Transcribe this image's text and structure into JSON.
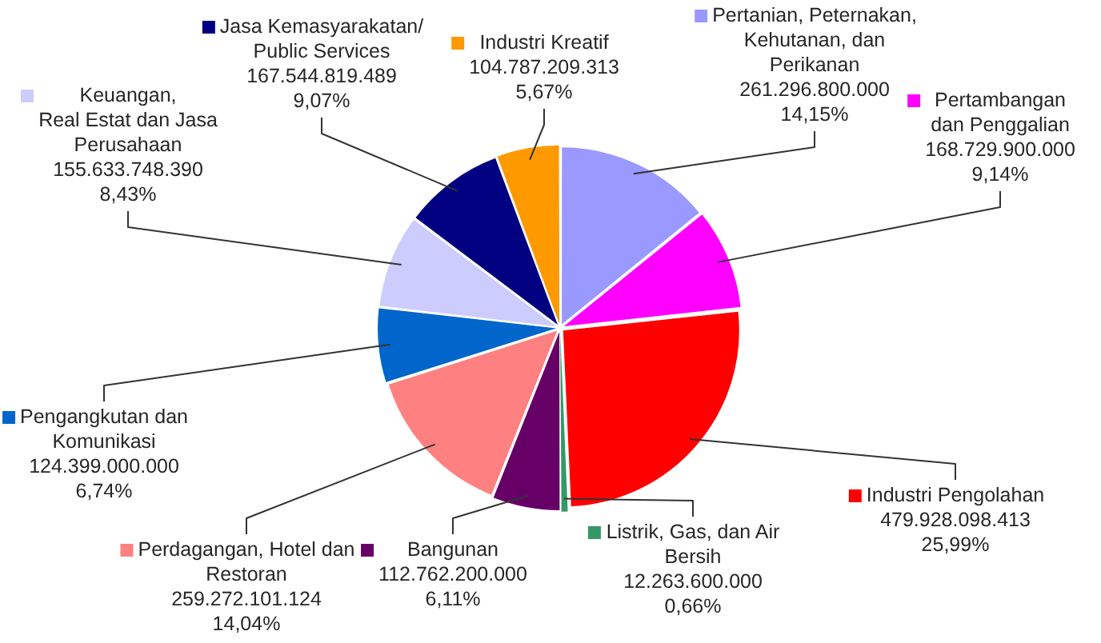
{
  "chart_data": {
    "type": "pie",
    "categories": [
      "Pertanian, Peternakan,\nKehutanan, dan\nPerikanan",
      "Pertambangan\ndan Penggalian",
      "Industri Pengolahan",
      "Listrik, Gas, dan Air\nBersih",
      "Bangunan",
      "Perdagangan, Hotel dan\nRestoran",
      "Pengangkutan dan\nKomunikasi",
      "Keuangan,\nReal Estat dan Jasa\nPerusahaan",
      "Jasa Kemasyarakatan/\nPublic Services",
      "Industri Kreatif"
    ],
    "values": [
      261296800000,
      168729900000,
      479928098413,
      12263600000,
      112762200000,
      259272101124,
      124399000000,
      155633748390,
      167544819489,
      104787209313
    ],
    "colors": [
      "#9999ff",
      "#ff00ff",
      "#ff0000",
      "#339966",
      "#660066",
      "#ff8080",
      "#0066cc",
      "#ccccff",
      "#000080",
      "#ff9900"
    ],
    "value_labels": [
      "261.296.800.000\n14,15%",
      "168.729.900.000\n9,14%",
      "479.928.098.413\n25,99%",
      "12.263.600.000\n0,66%",
      "112.762.200.000\n6,11%",
      "259.272.101.124\n14,04%",
      "124.399.000.000\n6,74%",
      "155.633.748.390\n8,43%",
      "167.544.819.489\n9,07%",
      "104.787.209.313\n5,67%"
    ],
    "legend": true
  }
}
